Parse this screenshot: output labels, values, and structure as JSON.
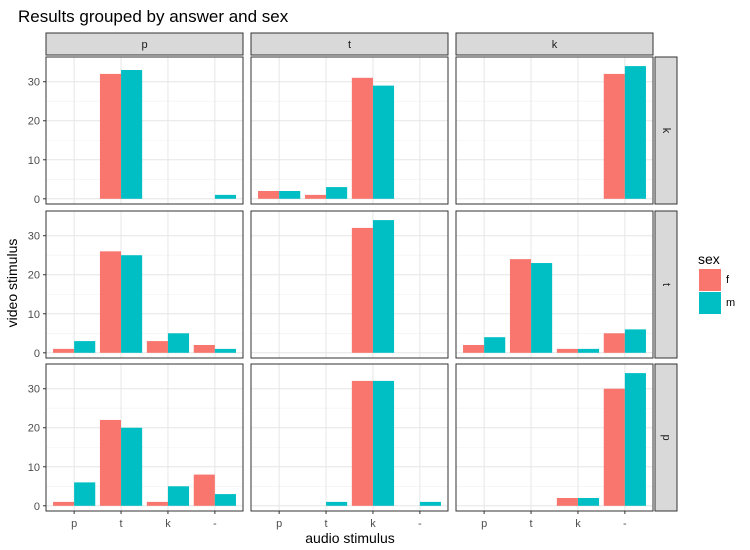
{
  "chart_data": {
    "type": "bar",
    "title": "Results grouped by answer and sex",
    "xlabel": "audio stimulus",
    "ylabel": "video stimulus",
    "categories": [
      "p",
      "t",
      "k",
      "-"
    ],
    "ylim": [
      0,
      35
    ],
    "yticks": [
      0,
      10,
      20,
      30
    ],
    "grid": true,
    "legend": {
      "title": "sex",
      "position": "right",
      "entries": [
        {
          "name": "f",
          "color": "#F8766D"
        },
        {
          "name": "m",
          "color": "#00BFC4"
        }
      ]
    },
    "column_facets": [
      "p",
      "t",
      "k"
    ],
    "row_facets": [
      "k",
      "t",
      "p"
    ],
    "panels": [
      {
        "col": "p",
        "row": "k",
        "series": [
          {
            "name": "f",
            "values": [
              0,
              32,
              0,
              0
            ]
          },
          {
            "name": "m",
            "values": [
              0,
              33,
              0,
              1
            ]
          }
        ]
      },
      {
        "col": "t",
        "row": "k",
        "series": [
          {
            "name": "f",
            "values": [
              2,
              1,
              31,
              0
            ]
          },
          {
            "name": "m",
            "values": [
              2,
              3,
              29,
              0
            ]
          }
        ]
      },
      {
        "col": "k",
        "row": "k",
        "series": [
          {
            "name": "f",
            "values": [
              0,
              0,
              0,
              32
            ]
          },
          {
            "name": "m",
            "values": [
              0,
              0,
              0,
              34
            ]
          }
        ]
      },
      {
        "col": "p",
        "row": "t",
        "series": [
          {
            "name": "f",
            "values": [
              1,
              26,
              3,
              2
            ]
          },
          {
            "name": "m",
            "values": [
              3,
              25,
              5,
              1
            ]
          }
        ]
      },
      {
        "col": "t",
        "row": "t",
        "series": [
          {
            "name": "f",
            "values": [
              0,
              0,
              32,
              0
            ]
          },
          {
            "name": "m",
            "values": [
              0,
              0,
              34,
              0
            ]
          }
        ]
      },
      {
        "col": "k",
        "row": "t",
        "series": [
          {
            "name": "f",
            "values": [
              2,
              24,
              1,
              5
            ]
          },
          {
            "name": "m",
            "values": [
              4,
              23,
              1,
              6
            ]
          }
        ]
      },
      {
        "col": "p",
        "row": "p",
        "series": [
          {
            "name": "f",
            "values": [
              1,
              22,
              1,
              8
            ]
          },
          {
            "name": "m",
            "values": [
              6,
              20,
              5,
              3
            ]
          }
        ]
      },
      {
        "col": "t",
        "row": "p",
        "series": [
          {
            "name": "f",
            "values": [
              0,
              0,
              32,
              0
            ]
          },
          {
            "name": "m",
            "values": [
              0,
              1,
              32,
              1
            ]
          }
        ]
      },
      {
        "col": "k",
        "row": "p",
        "series": [
          {
            "name": "f",
            "values": [
              0,
              0,
              2,
              30
            ]
          },
          {
            "name": "m",
            "values": [
              0,
              0,
              2,
              34
            ]
          }
        ]
      }
    ]
  }
}
